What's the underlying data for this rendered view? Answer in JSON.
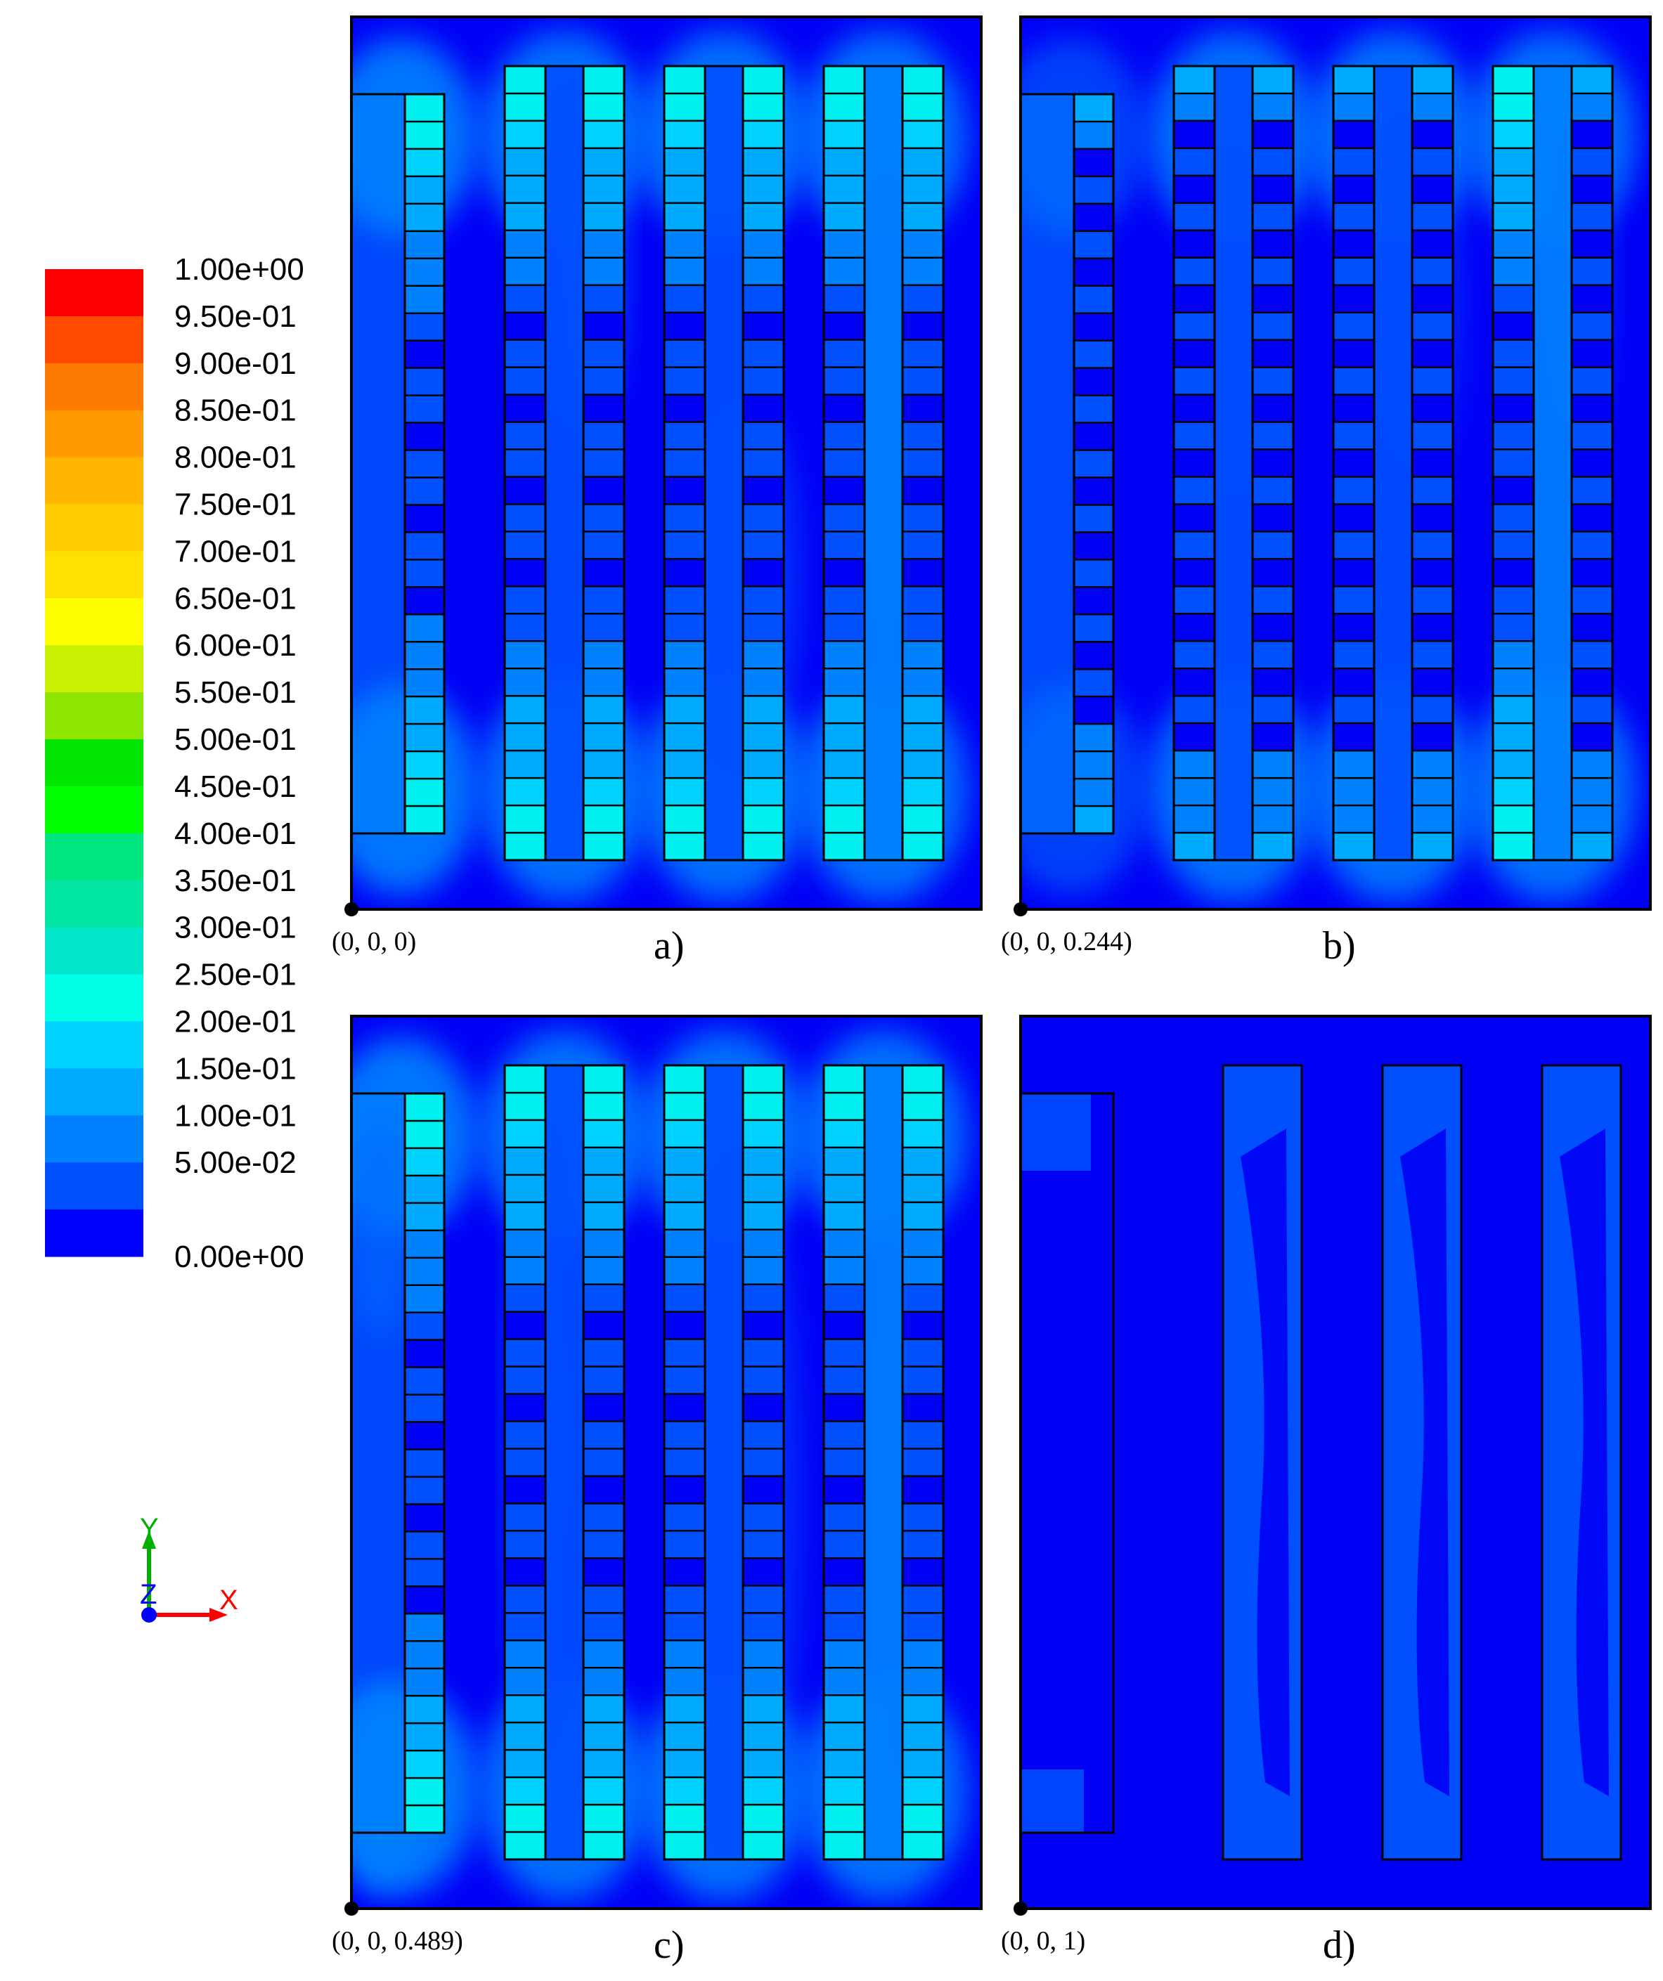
{
  "legend": {
    "labels": [
      "1.00e+00",
      "9.50e-01",
      "9.00e-01",
      "8.50e-01",
      "8.00e-01",
      "7.50e-01",
      "7.00e-01",
      "6.50e-01",
      "6.00e-01",
      "5.50e-01",
      "5.00e-01",
      "4.50e-01",
      "4.00e-01",
      "3.50e-01",
      "3.00e-01",
      "2.50e-01",
      "2.00e-01",
      "1.50e-01",
      "1.00e-01",
      "5.00e-02",
      "0.00e+00"
    ],
    "colors": [
      "#ff0000",
      "#ff4a00",
      "#ff7a00",
      "#ff9a00",
      "#ffb400",
      "#ffcc00",
      "#ffe100",
      "#ffff00",
      "#c8f000",
      "#8ce600",
      "#00e600",
      "#00ff00",
      "#00e680",
      "#00e6a0",
      "#00e6c8",
      "#00ffe6",
      "#00d2ff",
      "#00aaff",
      "#0082ff",
      "#0050ff",
      "#0000ff"
    ]
  },
  "axes_triad": {
    "y": "Y",
    "z": "Z",
    "x": "X",
    "y_color": "#00b000",
    "z_color": "#0000ff",
    "x_color": "#ff0000"
  },
  "panels": [
    {
      "caption": "a)",
      "coord": "(0, 0, 0)"
    },
    {
      "caption": "b)",
      "coord": "(0, 0, 0.244)"
    },
    {
      "caption": "c)",
      "coord": "(0, 0, 0.489)"
    },
    {
      "caption": "d)",
      "coord": "(0, 0, 1)"
    }
  ]
}
